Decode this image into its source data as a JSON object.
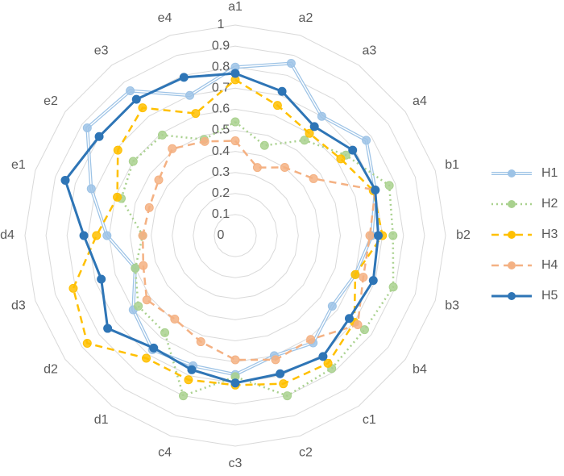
{
  "chart_data": {
    "type": "radar",
    "categories": [
      "a1",
      "a2",
      "a3",
      "a4",
      "b1",
      "b2",
      "b3",
      "b4",
      "c1",
      "c2",
      "c3",
      "c4",
      "d1",
      "d2",
      "d3",
      "d4",
      "e1",
      "e2",
      "e3",
      "e4"
    ],
    "ylim": [
      0,
      1
    ],
    "yticks": [
      0,
      0.1,
      0.2,
      0.3,
      0.4,
      0.5,
      0.6,
      0.7,
      0.8,
      0.9,
      1
    ],
    "grid": true,
    "legend": "right",
    "series": [
      {
        "name": "H1",
        "color": "#9dc3e6",
        "dash": "double",
        "values": [
          0.8,
          0.86,
          0.7,
          0.77,
          0.7,
          0.65,
          0.6,
          0.57,
          0.63,
          0.6,
          0.66,
          0.65,
          0.67,
          0.6,
          0.5,
          0.61,
          0.72,
          0.87,
          0.85,
          0.7
        ]
      },
      {
        "name": "H2",
        "color": "#a9d18e",
        "dash": "dot",
        "values": [
          0.54,
          0.45,
          0.56,
          0.65,
          0.77,
          0.75,
          0.79,
          0.76,
          0.78,
          0.8,
          0.67,
          0.8,
          0.57,
          0.57,
          0.5,
          0.44,
          0.57,
          0.6,
          0.59,
          0.48
        ]
      },
      {
        "name": "H3",
        "color": "#ffc000",
        "dash": "dash",
        "values": [
          0.74,
          0.65,
          0.6,
          0.62,
          0.69,
          0.7,
          0.6,
          0.7,
          0.75,
          0.74,
          0.71,
          0.72,
          0.72,
          0.87,
          0.81,
          0.66,
          0.59,
          0.69,
          0.75,
          0.61
        ]
      },
      {
        "name": "H4",
        "color": "#f4b183",
        "dash": "dash",
        "values": [
          0.45,
          0.34,
          0.4,
          0.46,
          0.7,
          0.64,
          0.64,
          0.72,
          0.61,
          0.62,
          0.59,
          0.53,
          0.49,
          0.52,
          0.46,
          0.44,
          0.43,
          0.45,
          0.51,
          0.47
        ]
      },
      {
        "name": "H5",
        "color": "#2e75b6",
        "dash": "solid",
        "values": [
          0.77,
          0.72,
          0.64,
          0.69,
          0.7,
          0.68,
          0.69,
          0.67,
          0.71,
          0.69,
          0.7,
          0.67,
          0.66,
          0.75,
          0.67,
          0.72,
          0.85,
          0.8,
          0.8,
          0.79
        ]
      }
    ]
  }
}
